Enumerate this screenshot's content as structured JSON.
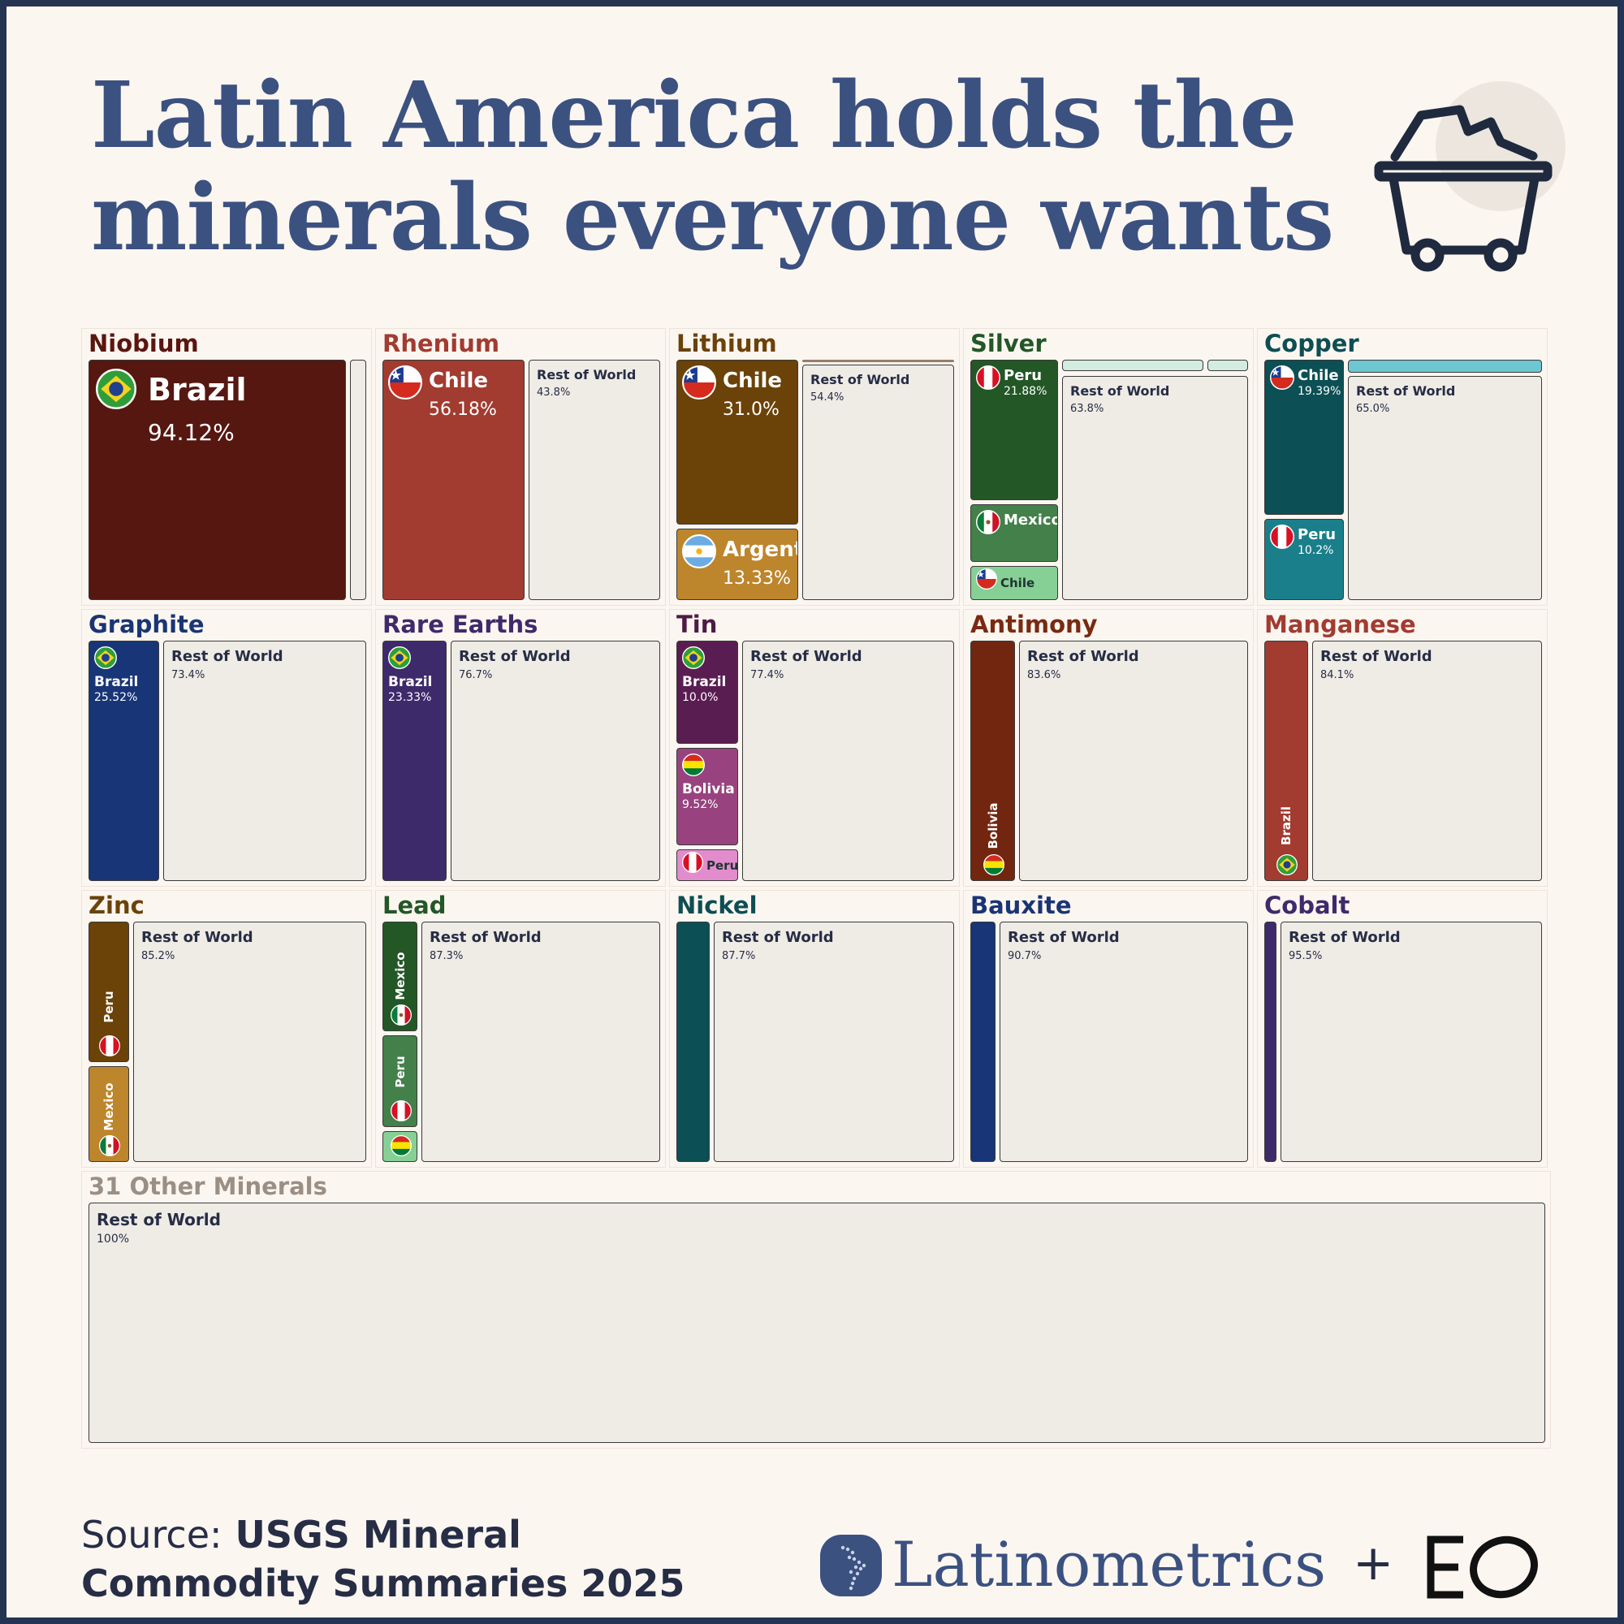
{
  "title": {
    "line1": "Latin America holds the",
    "line2": "minerals everyone wants"
  },
  "icons": {
    "cart": "mining-cart-icon",
    "brand": "latin-america-map-icon",
    "partner": "eo-logo"
  },
  "colors": {
    "background": "#fcf6f1",
    "frame": "#243352",
    "title": "#3b5180",
    "rest_of_world": "#efebe5"
  },
  "chart_data": {
    "type": "treemap-grid",
    "unit": "% of world reserves",
    "minerals": [
      {
        "name": "Niobium",
        "color": "#5b150f",
        "segments": [
          {
            "label": "Brazil",
            "value": 94.12,
            "display": "94.12%",
            "color": "#551710"
          },
          {
            "label": "",
            "value": 5.88,
            "display": "",
            "color": "#efebe5"
          }
        ]
      },
      {
        "name": "Rhenium",
        "color": "#a23b30",
        "segments": [
          {
            "label": "Chile",
            "value": 56.18,
            "display": "56.18%",
            "color": "#a23b30"
          },
          {
            "label": "Rest of World",
            "value": 43.8,
            "display": "43.8%",
            "color": "#efebe5"
          }
        ]
      },
      {
        "name": "Lithium",
        "color": "#6b4208",
        "segments": [
          {
            "label": "Chile",
            "value": 31.0,
            "display": "31.0%",
            "color": "#6b4208"
          },
          {
            "label": "Argentina",
            "value": 13.33,
            "display": "13.33%",
            "color": "#bd852c"
          },
          {
            "label": "Rest of World",
            "value": 54.4,
            "display": "54.4%",
            "color": "#efebe5"
          }
        ]
      },
      {
        "name": "Silver",
        "color": "#235726",
        "segments": [
          {
            "label": "Peru",
            "value": 21.88,
            "display": "21.88%",
            "color": "#235726"
          },
          {
            "label": "Mexico",
            "value": 9.0,
            "display": "",
            "color": "#43804a"
          },
          {
            "label": "Chile",
            "value": 5.3,
            "display": "",
            "color": "#86d095"
          },
          {
            "label": "Rest of World",
            "value": 63.8,
            "display": "63.8%",
            "color": "#efebe5"
          }
        ]
      },
      {
        "name": "Copper",
        "color": "#0d4e53",
        "segments": [
          {
            "label": "Chile",
            "value": 19.39,
            "display": "19.39%",
            "color": "#0c4f55"
          },
          {
            "label": "Peru",
            "value": 10.2,
            "display": "10.2%",
            "color": "#1a7f8a"
          },
          {
            "label": "Rest of World",
            "value": 65.0,
            "display": "65.0%",
            "color": "#efebe5"
          }
        ]
      },
      {
        "name": "Graphite",
        "color": "#1a3574",
        "segments": [
          {
            "label": "Brazil",
            "value": 25.52,
            "display": "25.52%",
            "color": "#173577"
          },
          {
            "label": "Rest of World",
            "value": 73.4,
            "display": "73.4%",
            "color": "#efebe5"
          }
        ]
      },
      {
        "name": "Rare Earths",
        "color": "#3e2a6b",
        "segments": [
          {
            "label": "Brazil",
            "value": 23.33,
            "display": "23.33%",
            "color": "#3d2a6b"
          },
          {
            "label": "Rest of World",
            "value": 76.7,
            "display": "76.7%",
            "color": "#efebe5"
          }
        ]
      },
      {
        "name": "Tin",
        "color": "#4e1b45",
        "segments": [
          {
            "label": "Brazil",
            "value": 10.0,
            "display": "10.0%",
            "color": "#5a1d51"
          },
          {
            "label": "Bolivia",
            "value": 9.52,
            "display": "9.52%",
            "color": "#98437f"
          },
          {
            "label": "Peru",
            "value": 3.1,
            "display": "",
            "color": "#e38ccd"
          },
          {
            "label": "Rest of World",
            "value": 77.4,
            "display": "77.4%",
            "color": "#efebe5"
          }
        ]
      },
      {
        "name": "Antimony",
        "color": "#7a2a12",
        "segments": [
          {
            "label": "Bolivia",
            "value": 16.4,
            "display": "",
            "color": "#72260f"
          },
          {
            "label": "Rest of World",
            "value": 83.6,
            "display": "83.6%",
            "color": "#efebe5"
          }
        ]
      },
      {
        "name": "Manganese",
        "color": "#a23b30",
        "segments": [
          {
            "label": "Brazil",
            "value": 15.9,
            "display": "",
            "color": "#a23b30"
          },
          {
            "label": "Rest of World",
            "value": 84.1,
            "display": "84.1%",
            "color": "#efebe5"
          }
        ]
      },
      {
        "name": "Zinc",
        "color": "#6b4208",
        "segments": [
          {
            "label": "Peru",
            "value": 8.8,
            "display": "",
            "color": "#6b4208"
          },
          {
            "label": "Mexico",
            "value": 6.0,
            "display": "",
            "color": "#bd852c"
          },
          {
            "label": "Rest of World",
            "value": 85.2,
            "display": "85.2%",
            "color": "#efebe5"
          }
        ]
      },
      {
        "name": "Lead",
        "color": "#235726",
        "segments": [
          {
            "label": "Mexico",
            "value": 6.0,
            "display": "",
            "color": "#235726"
          },
          {
            "label": "Peru",
            "value": 5.0,
            "display": "",
            "color": "#43804a"
          },
          {
            "label": "Bolivia",
            "value": 1.7,
            "display": "",
            "color": "#86d095"
          },
          {
            "label": "Rest of World",
            "value": 87.3,
            "display": "87.3%",
            "color": "#efebe5"
          }
        ]
      },
      {
        "name": "Nickel",
        "color": "#0d4e53",
        "segments": [
          {
            "label": "",
            "value": 12.3,
            "display": "",
            "color": "#0c4f55"
          },
          {
            "label": "Rest of World",
            "value": 87.7,
            "display": "87.7%",
            "color": "#efebe5"
          }
        ]
      },
      {
        "name": "Bauxite",
        "color": "#1a3574",
        "segments": [
          {
            "label": "",
            "value": 9.3,
            "display": "",
            "color": "#173577"
          },
          {
            "label": "Rest of World",
            "value": 90.7,
            "display": "90.7%",
            "color": "#efebe5"
          }
        ]
      },
      {
        "name": "Cobalt",
        "color": "#3e2a6b",
        "segments": [
          {
            "label": "",
            "value": 4.5,
            "display": "",
            "color": "#3d2a6b"
          },
          {
            "label": "Rest of World",
            "value": 95.5,
            "display": "95.5%",
            "color": "#efebe5"
          }
        ]
      },
      {
        "name": "31 Other Minerals",
        "color": "#9a8f84",
        "segments": [
          {
            "label": "Rest of World",
            "value": 100,
            "display": "100%",
            "color": "#efebe5"
          }
        ]
      }
    ]
  },
  "footer": {
    "source_prefix": "Source:",
    "source_rest": " USGS Mineral",
    "source_line2": "Commodity Summaries 2025",
    "brand": "Latinometrics",
    "plus": "+",
    "partner": "EO"
  }
}
